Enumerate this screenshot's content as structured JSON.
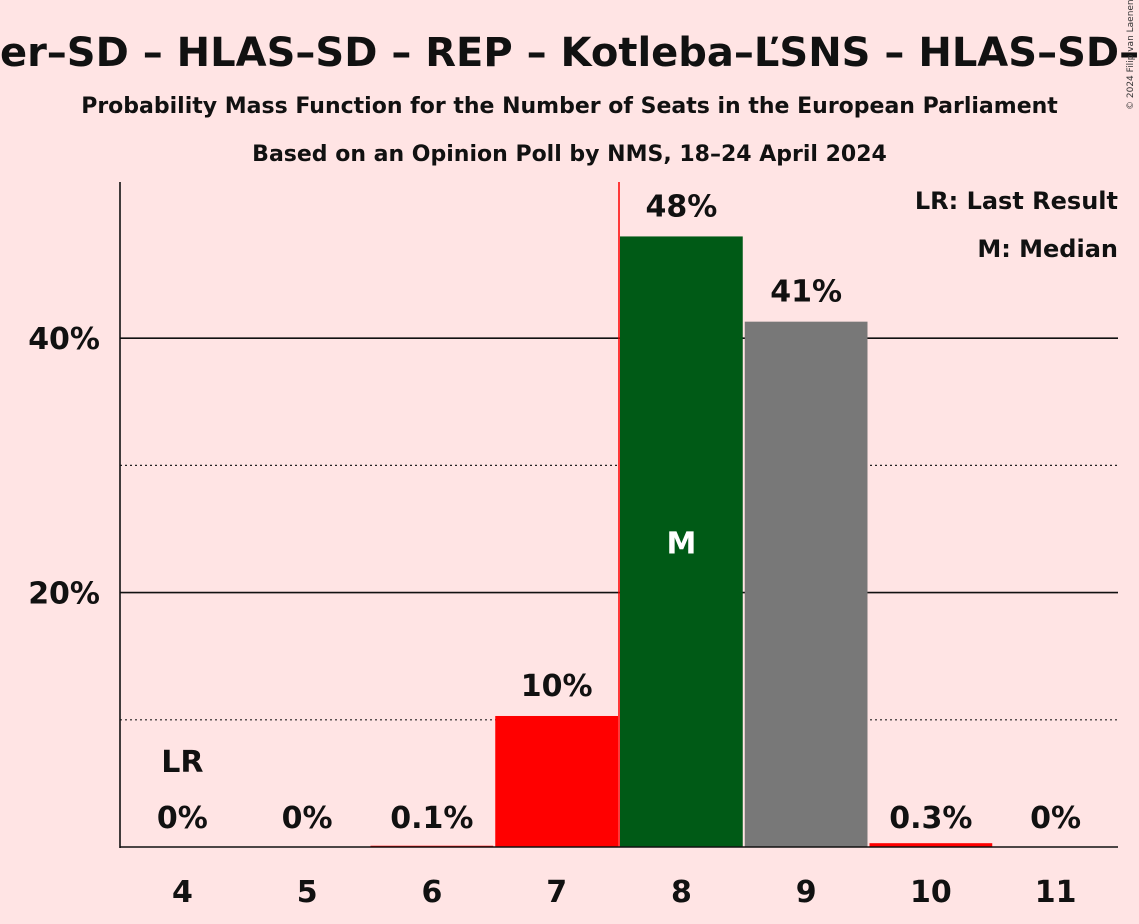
{
  "chart_data": {
    "type": "bar",
    "title": "er–SD – HLAS–SD – REP – Kotleba–ĽSNS – HLAS–SD–",
    "subtitle_1": "Probability Mass Function for the Number of Seats in the European Parliament",
    "subtitle_2": "Based on an Opinion Poll by NMS, 18–24 April 2024",
    "categories": [
      "4",
      "5",
      "6",
      "7",
      "8",
      "9",
      "10",
      "11"
    ],
    "values": [
      0,
      0,
      0.1,
      10.3,
      48,
      41.3,
      0.3,
      0
    ],
    "data_labels": [
      "0%",
      "0%",
      "0.1%",
      "10%",
      "48%",
      "41%",
      "0.3%",
      "0%"
    ],
    "bar_colors": [
      "#ff0000",
      "#ff0000",
      "#ff0000",
      "#ff0000",
      "#005a16",
      "#787878",
      "#ff0000",
      "#ff0000"
    ],
    "ylim": [
      0,
      52
    ],
    "y_ticks": [
      {
        "value": 20,
        "label": "20%"
      },
      {
        "value": 40,
        "label": "40%"
      }
    ],
    "dotted_gridlines": [
      10,
      30
    ],
    "last_result_index": 0,
    "last_result_label": "LR",
    "median_index": 4,
    "median_label": "M",
    "legend": [
      "LR: Last Result",
      "M: Median"
    ],
    "legend_position": "top-right",
    "copyright": "© 2024 Filip van Laenen"
  }
}
